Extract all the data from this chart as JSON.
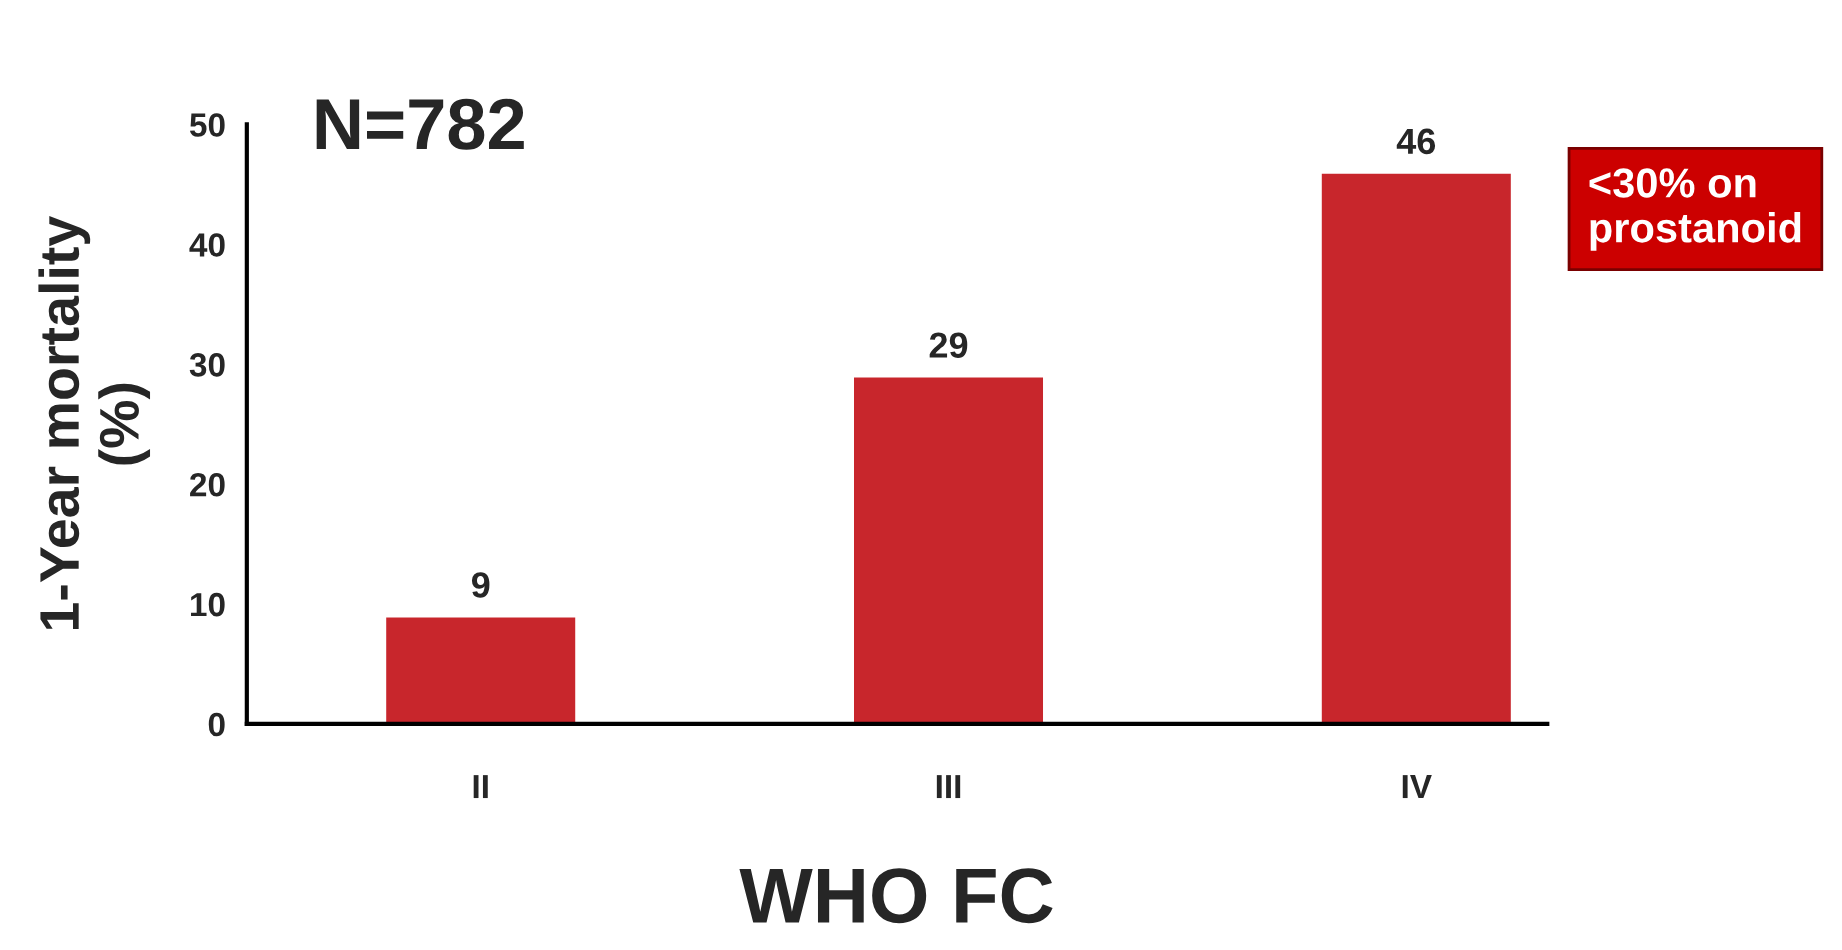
{
  "chart_data": {
    "type": "bar",
    "xlabel": "WHO FC",
    "ylabel": "1-Year mortality\n(%)",
    "categories": [
      "II",
      "III",
      "IV"
    ],
    "values": [
      9,
      29,
      46
    ],
    "color": "#c8262c",
    "ylim": [
      0,
      50
    ],
    "yticks": [
      0,
      10,
      20,
      30,
      40,
      50
    ],
    "grid": false,
    "data_labels": true,
    "annotations": [
      "N=782",
      "<30% on\nprostanoid"
    ]
  }
}
